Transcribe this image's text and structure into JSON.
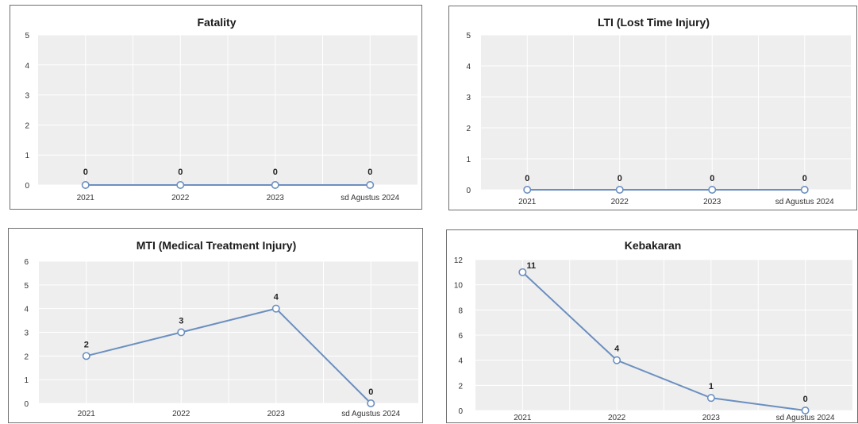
{
  "colors": {
    "line": "#6b8fc0",
    "marker_fill": "#ffffff",
    "plot_bg": "#eeeeee",
    "grid": "#ffffff"
  },
  "chart_data": [
    {
      "type": "line",
      "title": "Fatality",
      "categories": [
        "2021",
        "2022",
        "2023",
        "sd Agustus 2024"
      ],
      "values": [
        0,
        0,
        0,
        0
      ],
      "data_labels": [
        "0",
        "0",
        "0",
        "0"
      ],
      "ylim": [
        0,
        5
      ],
      "yticks": [
        "0",
        "1",
        "2",
        "3",
        "4",
        "5"
      ],
      "grid": true,
      "legend": "none"
    },
    {
      "type": "line",
      "title": "LTI (Lost Time Injury)",
      "categories": [
        "2021",
        "2022",
        "2023",
        "sd Agustus 2024"
      ],
      "values": [
        0,
        0,
        0,
        0
      ],
      "data_labels": [
        "0",
        "0",
        "0",
        "0"
      ],
      "ylim": [
        0,
        5
      ],
      "yticks": [
        "0",
        "1",
        "2",
        "3",
        "4",
        "5"
      ],
      "grid": true,
      "legend": "none"
    },
    {
      "type": "line",
      "title": "MTI (Medical Treatment Injury)",
      "categories": [
        "2021",
        "2022",
        "2023",
        "sd Agustus 2024"
      ],
      "values": [
        2,
        3,
        4,
        0
      ],
      "data_labels": [
        "2",
        "3",
        "4",
        "0"
      ],
      "ylim": [
        0,
        6
      ],
      "yticks": [
        "0",
        "1",
        "2",
        "3",
        "4",
        "5",
        "6"
      ],
      "grid": true,
      "legend": "none"
    },
    {
      "type": "line",
      "title": "Kebakaran",
      "categories": [
        "2021",
        "2022",
        "2023",
        "sd Agustus 2024"
      ],
      "values": [
        11,
        4,
        1,
        0
      ],
      "data_labels": [
        "11",
        "4",
        "1",
        "0"
      ],
      "ylim": [
        0,
        12
      ],
      "yticks": [
        "0",
        "2",
        "4",
        "6",
        "8",
        "10",
        "12"
      ],
      "grid": true,
      "legend": "none"
    }
  ]
}
